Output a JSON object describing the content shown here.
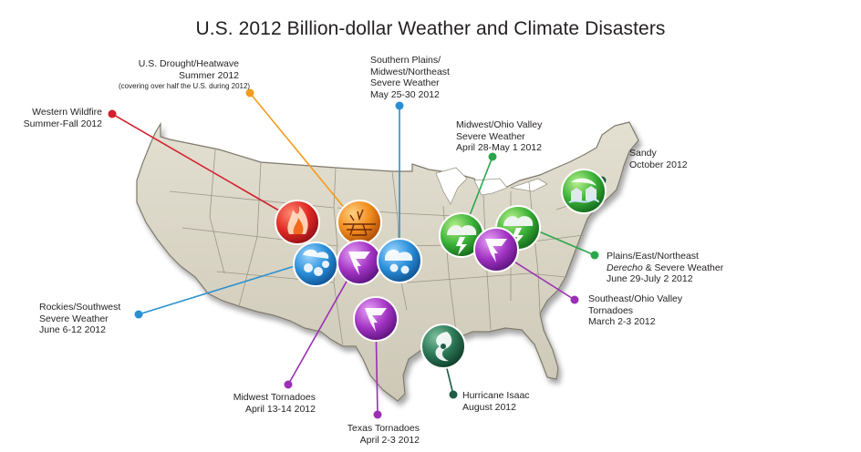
{
  "title": "U.S. 2012 Billion-dollar Weather and Climate Disasters",
  "colors": {
    "wildfire": "#d3202c",
    "drought": "#f39c1f",
    "severe_blue": "#2a8fd1",
    "green": "#2aa64b",
    "purple": "#9b2fb5",
    "hurricane": "#1d5c45",
    "sandy": "#175c3d",
    "land": "#d8d4c5",
    "border": "#8b8677"
  },
  "events": {
    "drought": {
      "line1": "U.S. Drought/Heatwave",
      "line2": "Summer 2012",
      "note": "(covering over half the U.S. during 2012)",
      "icon": "drought-icon"
    },
    "southern_plains": {
      "line1": "Southern Plains/",
      "line2": "Midwest/Northeast",
      "line3": "Severe Weather",
      "line4": "May 25-30 2012",
      "icon": "severe-weather-icon"
    },
    "wildfire": {
      "line1": "Western Wildfire",
      "line2": "Summer-Fall 2012",
      "icon": "wildfire-icon"
    },
    "midwest_ohio": {
      "line1": "Midwest/Ohio Valley",
      "line2": "Severe Weather",
      "line3": "April 28-May 1 2012",
      "icon": "storm-cloud-icon"
    },
    "sandy": {
      "line1": "Sandy",
      "line2": "October 2012",
      "icon": "sandy-icon"
    },
    "derecho": {
      "line1": "Plains/East/Northeast",
      "line2a": "Derecho",
      "line2b": " & Severe Weather",
      "line3": "June 29-July 2 2012",
      "icon": "storm-cloud-icon"
    },
    "rockies": {
      "line1": "Rockies/Southwest",
      "line2": "Severe Weather",
      "line3": "June 6-12 2012",
      "icon": "hail-icon"
    },
    "southeast": {
      "line1": "Southeast/Ohio Valley",
      "line2": "Tornadoes",
      "line3": "March 2-3 2012",
      "icon": "tornado-icon"
    },
    "midwest_tornadoes": {
      "line1": "Midwest Tornadoes",
      "line2": "April 13-14 2012",
      "icon": "tornado-icon"
    },
    "isaac": {
      "line1": "Hurricane Isaac",
      "line2": "August 2012",
      "icon": "hurricane-icon"
    },
    "texas": {
      "line1": "Texas Tornadoes",
      "line2": "April 2-3 2012",
      "icon": "tornado-icon"
    }
  }
}
